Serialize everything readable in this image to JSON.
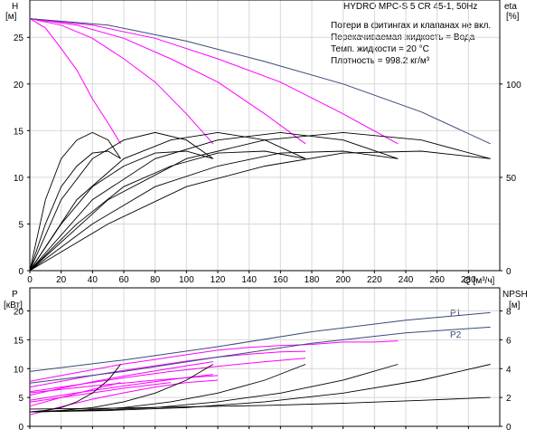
{
  "chart_data": [
    {
      "type": "line",
      "panel": "head-efficiency",
      "title": "HYDRO MPC-S 5 CR 45-1, 50Hz",
      "notes": [
        "Потери в фитингах и клапанах не вкл.",
        "Перекачиваемая жидкость = Вода",
        "Темп. жидкости = 20 °C",
        "Плотность = 998.2 кг/м³"
      ],
      "xlabel": "Q [м³/ч]",
      "xlim": [
        0,
        300
      ],
      "xticks": [
        0,
        20,
        40,
        60,
        80,
        100,
        120,
        140,
        160,
        180,
        200,
        220,
        240,
        260,
        280
      ],
      "y_left": {
        "label": "H",
        "unit": "[м]",
        "lim": [
          0,
          29
        ],
        "ticks": [
          0,
          5,
          10,
          15,
          20,
          25
        ]
      },
      "y_right": {
        "label": "eta",
        "unit": "[%]",
        "lim": [
          0,
          145
        ],
        "ticks": [
          0,
          50,
          100
        ]
      },
      "grid": true,
      "colors": {
        "pump_curve": "#ff00ff",
        "system_curve": "#3a4a7a",
        "efficiency": "#000000"
      },
      "head_curves": [
        {
          "pumps": 1,
          "x": [
            0,
            10,
            20,
            30,
            40,
            50,
            58
          ],
          "y": [
            27,
            26,
            23.8,
            21.5,
            18.4,
            15.8,
            13.6
          ]
        },
        {
          "pumps": 2,
          "x": [
            0,
            20,
            40,
            60,
            80,
            100,
            117
          ],
          "y": [
            27,
            26.3,
            24.9,
            22.7,
            20.2,
            16.8,
            13.6
          ]
        },
        {
          "pumps": 3,
          "x": [
            0,
            30,
            60,
            90,
            120,
            150,
            176
          ],
          "y": [
            27,
            26.3,
            24.9,
            22.7,
            20.2,
            16.8,
            13.6
          ]
        },
        {
          "pumps": 4,
          "x": [
            0,
            40,
            80,
            120,
            160,
            200,
            235
          ],
          "y": [
            27,
            26.3,
            24.9,
            22.7,
            20.2,
            16.8,
            13.6
          ]
        }
      ],
      "system_curve": {
        "x": [
          0,
          50,
          100,
          150,
          200,
          250,
          294
        ],
        "y": [
          27,
          26.3,
          24.6,
          22.4,
          20,
          17,
          13.6
        ]
      },
      "efficiency_curves": [
        {
          "pumps": 1,
          "x": [
            0,
            10,
            20,
            30,
            40,
            50,
            58
          ],
          "y": [
            0,
            38,
            60,
            70,
            74,
            70,
            60
          ]
        },
        {
          "pumps": 2,
          "x": [
            0,
            20,
            40,
            60,
            80,
            100,
            117
          ],
          "y": [
            0,
            38,
            60,
            70,
            74,
            70,
            60
          ]
        },
        {
          "pumps": 3,
          "x": [
            0,
            30,
            60,
            90,
            120,
            150,
            176
          ],
          "y": [
            0,
            38,
            60,
            70,
            74,
            70,
            60
          ]
        },
        {
          "pumps": 4,
          "x": [
            0,
            40,
            80,
            120,
            160,
            200,
            235
          ],
          "y": [
            0,
            38,
            60,
            70,
            74,
            70,
            60
          ]
        },
        {
          "pumps": 5,
          "x": [
            0,
            50,
            100,
            150,
            200,
            250,
            294
          ],
          "y": [
            0,
            38,
            60,
            70,
            74,
            70,
            60
          ]
        },
        {
          "pumps": 1,
          "x": [
            0,
            10,
            20,
            30,
            40,
            50,
            58
          ],
          "y": [
            0,
            25,
            45,
            56,
            63,
            64,
            60
          ]
        },
        {
          "pumps": 2,
          "x": [
            0,
            20,
            40,
            60,
            80,
            100,
            117
          ],
          "y": [
            0,
            25,
            45,
            56,
            63,
            64,
            60
          ]
        },
        {
          "pumps": 3,
          "x": [
            0,
            30,
            60,
            90,
            120,
            150,
            176
          ],
          "y": [
            0,
            25,
            45,
            56,
            63,
            64,
            60
          ]
        },
        {
          "pumps": 4,
          "x": [
            0,
            40,
            80,
            120,
            160,
            200,
            235
          ],
          "y": [
            0,
            25,
            45,
            56,
            63,
            64,
            60
          ]
        },
        {
          "pumps": 5,
          "x": [
            0,
            50,
            100,
            150,
            200,
            250,
            294
          ],
          "y": [
            0,
            25,
            45,
            56,
            63,
            64,
            60
          ]
        }
      ]
    },
    {
      "type": "line",
      "panel": "power-npsh",
      "xlim": [
        0,
        300
      ],
      "xticks": [
        0,
        20,
        40,
        60,
        80,
        100,
        120,
        140,
        160,
        180,
        200,
        220,
        240,
        260,
        280
      ],
      "y_left": {
        "label": "P",
        "unit": "[кВт]",
        "lim": [
          0,
          24
        ],
        "ticks": [
          0,
          5,
          10,
          15,
          20
        ]
      },
      "y_right": {
        "label": "NPSH",
        "unit": "[м]",
        "lim": [
          0,
          9.6
        ],
        "ticks": [
          0,
          2,
          4,
          6,
          8
        ]
      },
      "grid": true,
      "colors": {
        "p1": "#3a4a7a",
        "p2": "#3a4a7a",
        "pump_power": "#ff00ff",
        "npsh": "#000000"
      },
      "series": [
        {
          "name": "P1",
          "x": [
            0,
            60,
            120,
            180,
            240,
            294
          ],
          "y": [
            9.5,
            11.5,
            13.8,
            16.4,
            18.4,
            19.7
          ]
        },
        {
          "name": "P2",
          "x": [
            0,
            60,
            120,
            180,
            240,
            294
          ],
          "y": [
            7.5,
            9.5,
            12,
            14.4,
            16.2,
            17.2
          ]
        }
      ],
      "power_curves": [
        {
          "x": [
            0,
            20,
            40,
            60,
            80,
            100,
            120,
            140,
            160,
            180,
            200,
            220,
            235
          ],
          "y": [
            7.8,
            8.8,
            9.8,
            10.8,
            11.6,
            12.4,
            13.2,
            13.7,
            14,
            14.2,
            14.6,
            14.6,
            14.8
          ]
        },
        {
          "x": [
            0,
            20,
            40,
            60,
            80,
            100,
            120,
            140,
            160,
            176
          ],
          "y": [
            6.8,
            7.8,
            8.8,
            9.7,
            10.5,
            11.3,
            12,
            12.5,
            12.9,
            13
          ]
        },
        {
          "x": [
            0,
            20,
            40,
            60,
            80,
            100,
            117
          ],
          "y": [
            5.4,
            6.6,
            7.7,
            8.7,
            9.6,
            10.5,
            11.2
          ]
        },
        {
          "x": [
            0,
            20,
            40,
            58
          ],
          "y": [
            3.5,
            5,
            6.4,
            7.6
          ]
        },
        {
          "x": [
            0,
            20,
            40,
            60,
            80,
            100,
            120
          ],
          "y": [
            2,
            3.4,
            4.7,
            5.8,
            6.8,
            7.6,
            8
          ]
        },
        {
          "x": [
            0,
            30,
            60,
            90,
            117
          ],
          "y": [
            4.5,
            5.8,
            7,
            8.1,
            9
          ]
        },
        {
          "x": [
            0,
            30,
            60,
            90,
            120,
            150,
            176
          ],
          "y": [
            6,
            7.2,
            8.4,
            9.5,
            10.4,
            11.2,
            11.8
          ]
        },
        {
          "x": [
            0,
            30,
            60,
            90
          ],
          "y": [
            4.2,
            5.4,
            6.6,
            7.6
          ]
        },
        {
          "x": [
            0,
            20,
            40,
            60,
            80,
            100,
            120
          ],
          "y": [
            5.8,
            6.4,
            7,
            7.5,
            8,
            8.4,
            8.8
          ]
        }
      ],
      "npsh_curves": [
        {
          "x": [
            0,
            10,
            20,
            30,
            40,
            50,
            58
          ],
          "y": [
            1,
            1.1,
            1.3,
            1.7,
            2.3,
            3.2,
            4.3
          ]
        },
        {
          "x": [
            0,
            20,
            40,
            60,
            80,
            100,
            117
          ],
          "y": [
            1,
            1.1,
            1.3,
            1.7,
            2.3,
            3.2,
            4.3
          ]
        },
        {
          "x": [
            0,
            30,
            60,
            90,
            120,
            150,
            176
          ],
          "y": [
            1,
            1.1,
            1.3,
            1.7,
            2.3,
            3.2,
            4.3
          ]
        },
        {
          "x": [
            0,
            40,
            80,
            120,
            160,
            200,
            235
          ],
          "y": [
            1,
            1.1,
            1.3,
            1.7,
            2.3,
            3.2,
            4.3
          ]
        },
        {
          "x": [
            0,
            50,
            100,
            150,
            200,
            250,
            294
          ],
          "y": [
            1,
            1.1,
            1.3,
            1.7,
            2.3,
            3.2,
            4.3
          ]
        },
        {
          "x": [
            0,
            50,
            100,
            150,
            200,
            250,
            294
          ],
          "y": [
            1.2,
            1.25,
            1.35,
            1.45,
            1.6,
            1.8,
            2
          ]
        }
      ]
    }
  ]
}
